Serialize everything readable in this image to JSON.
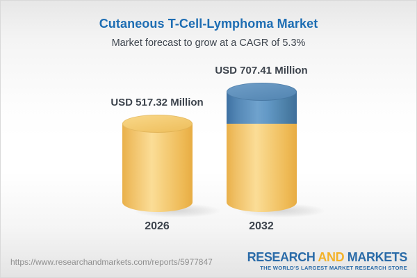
{
  "header": {
    "title": "Cutaneous T-Cell-Lymphoma Market",
    "subtitle": "Market forecast to grow at a CAGR of 5.3%"
  },
  "chart_data": {
    "type": "bar",
    "variant": "3d-cylinder",
    "title": "Cutaneous T-Cell-Lymphoma Market",
    "subtitle": "Market forecast to grow at a CAGR of 5.3%",
    "categories": [
      "2026",
      "2032"
    ],
    "values": [
      517.32,
      707.41
    ],
    "value_labels": [
      "USD 517.32 Million",
      "USD 707.41 Million"
    ],
    "unit": "USD Million",
    "cagr_percent": 5.3,
    "legend": false,
    "grid": false,
    "colors": {
      "base_segment": "#f2c367",
      "growth_segment": "#5688b4",
      "title_text": "#1d6db3",
      "label_text": "#3d444d"
    }
  },
  "footer": {
    "report_url": "https://www.researchandmarkets.com/reports/5977847",
    "logo": {
      "word1": "RESEARCH",
      "word2": "AND",
      "word3": "MARKETS",
      "tagline": "THE WORLD'S LARGEST MARKET RESEARCH STORE"
    }
  }
}
